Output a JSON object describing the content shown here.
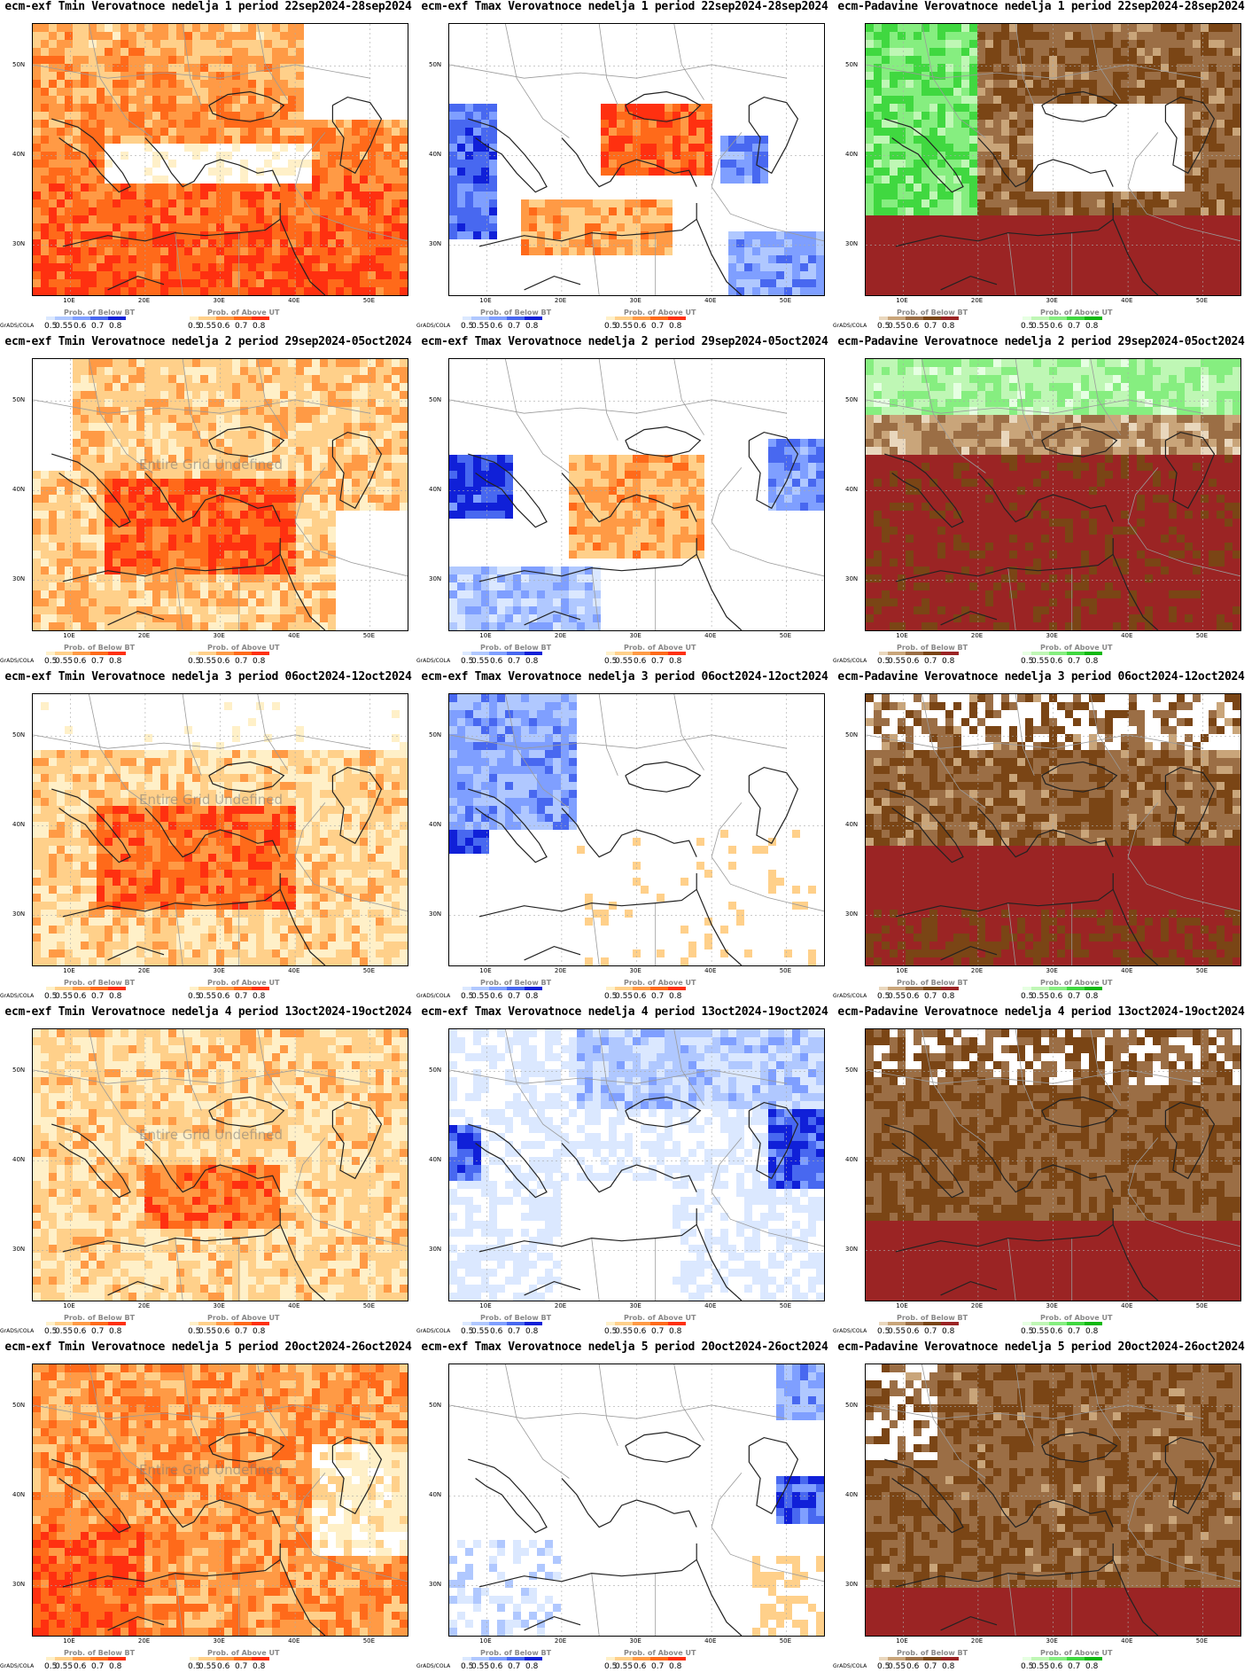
{
  "axes": {
    "lat_labels": [
      "50N",
      "40N",
      "30N"
    ],
    "lon_labels": [
      "10E",
      "20E",
      "30E",
      "40E",
      "50E"
    ]
  },
  "legend": {
    "grads": "GrADS/COLA",
    "below_title": "Prob. of Below BT",
    "above_title": "Prob. of Above UT",
    "ticks": [
      "0.5",
      "0.55",
      "0.6",
      "0.7",
      "0.8"
    ],
    "palettes": {
      "warm": [
        "#fff0c8",
        "#ffd08a",
        "#ff9a45",
        "#ff6a1a",
        "#ff3010"
      ],
      "cool": [
        "#dbe8ff",
        "#b0c8ff",
        "#7f9fff",
        "#4868f0",
        "#1020d8"
      ],
      "dry": [
        "#e9d7bd",
        "#c9a57a",
        "#9b6e45",
        "#7a4515",
        "#9b2424"
      ],
      "wet": [
        "#e6ffe2",
        "#bff7b5",
        "#86ee80",
        "#40d840",
        "#10b810"
      ]
    }
  },
  "undefined_text": "Entire Grid Undefined",
  "panels": [
    {
      "title": "ecm-exf Tmin Verovatnoce nedelja 1 period 22sep2024-28sep2024",
      "variable": "Tmin",
      "left": "cool",
      "right": "warm",
      "undefined": false
    },
    {
      "title": "ecm-exf Tmax Verovatnoce nedelja 1 period 22sep2024-28sep2024",
      "variable": "Tmax",
      "left": "cool",
      "right": "warm",
      "undefined": false
    },
    {
      "title": "ecm-Padavine Verovatnoce nedelja 1 period 22sep2024-28sep2024",
      "variable": "Padavine",
      "left": "dry",
      "right": "wet",
      "undefined": false
    },
    {
      "title": "ecm-exf Tmin Verovatnoce nedelja 2 period 29sep2024-05oct2024",
      "variable": "Tmin",
      "left": "warm",
      "right": "warm",
      "undefined": true
    },
    {
      "title": "ecm-exf Tmax Verovatnoce nedelja 2 period 29sep2024-05oct2024",
      "variable": "Tmax",
      "left": "cool",
      "right": "warm",
      "undefined": false
    },
    {
      "title": "ecm-Padavine Verovatnoce nedelja 2 period 29sep2024-05oct2024",
      "variable": "Padavine",
      "left": "dry",
      "right": "wet",
      "undefined": false
    },
    {
      "title": "ecm-exf Tmin Verovatnoce nedelja 3 period 06oct2024-12oct2024",
      "variable": "Tmin",
      "left": "warm",
      "right": "warm",
      "undefined": true
    },
    {
      "title": "ecm-exf Tmax Verovatnoce nedelja 3 period 06oct2024-12oct2024",
      "variable": "Tmax",
      "left": "cool",
      "right": "warm",
      "undefined": false
    },
    {
      "title": "ecm-Padavine Verovatnoce nedelja 3 period 06oct2024-12oct2024",
      "variable": "Padavine",
      "left": "dry",
      "right": "wet",
      "undefined": false
    },
    {
      "title": "ecm-exf Tmin Verovatnoce nedelja 4 period 13oct2024-19oct2024",
      "variable": "Tmin",
      "left": "warm",
      "right": "warm",
      "undefined": true
    },
    {
      "title": "ecm-exf Tmax Verovatnoce nedelja 4 period 13oct2024-19oct2024",
      "variable": "Tmax",
      "left": "cool",
      "right": "warm",
      "undefined": false
    },
    {
      "title": "ecm-Padavine Verovatnoce nedelja 4 period 13oct2024-19oct2024",
      "variable": "Padavine",
      "left": "dry",
      "right": "wet",
      "undefined": false
    },
    {
      "title": "ecm-exf Tmin Verovatnoce nedelja 5 period 20oct2024-26oct2024",
      "variable": "Tmin",
      "left": "warm",
      "right": "warm",
      "undefined": true
    },
    {
      "title": "ecm-exf Tmax Verovatnoce nedelja 5 period 20oct2024-26oct2024",
      "variable": "Tmax",
      "left": "cool",
      "right": "warm",
      "undefined": false
    },
    {
      "title": "ecm-Padavine Verovatnoce nedelja 5 period 20oct2024-26oct2024",
      "variable": "Padavine",
      "left": "dry",
      "right": "wet",
      "undefined": false
    }
  ]
}
